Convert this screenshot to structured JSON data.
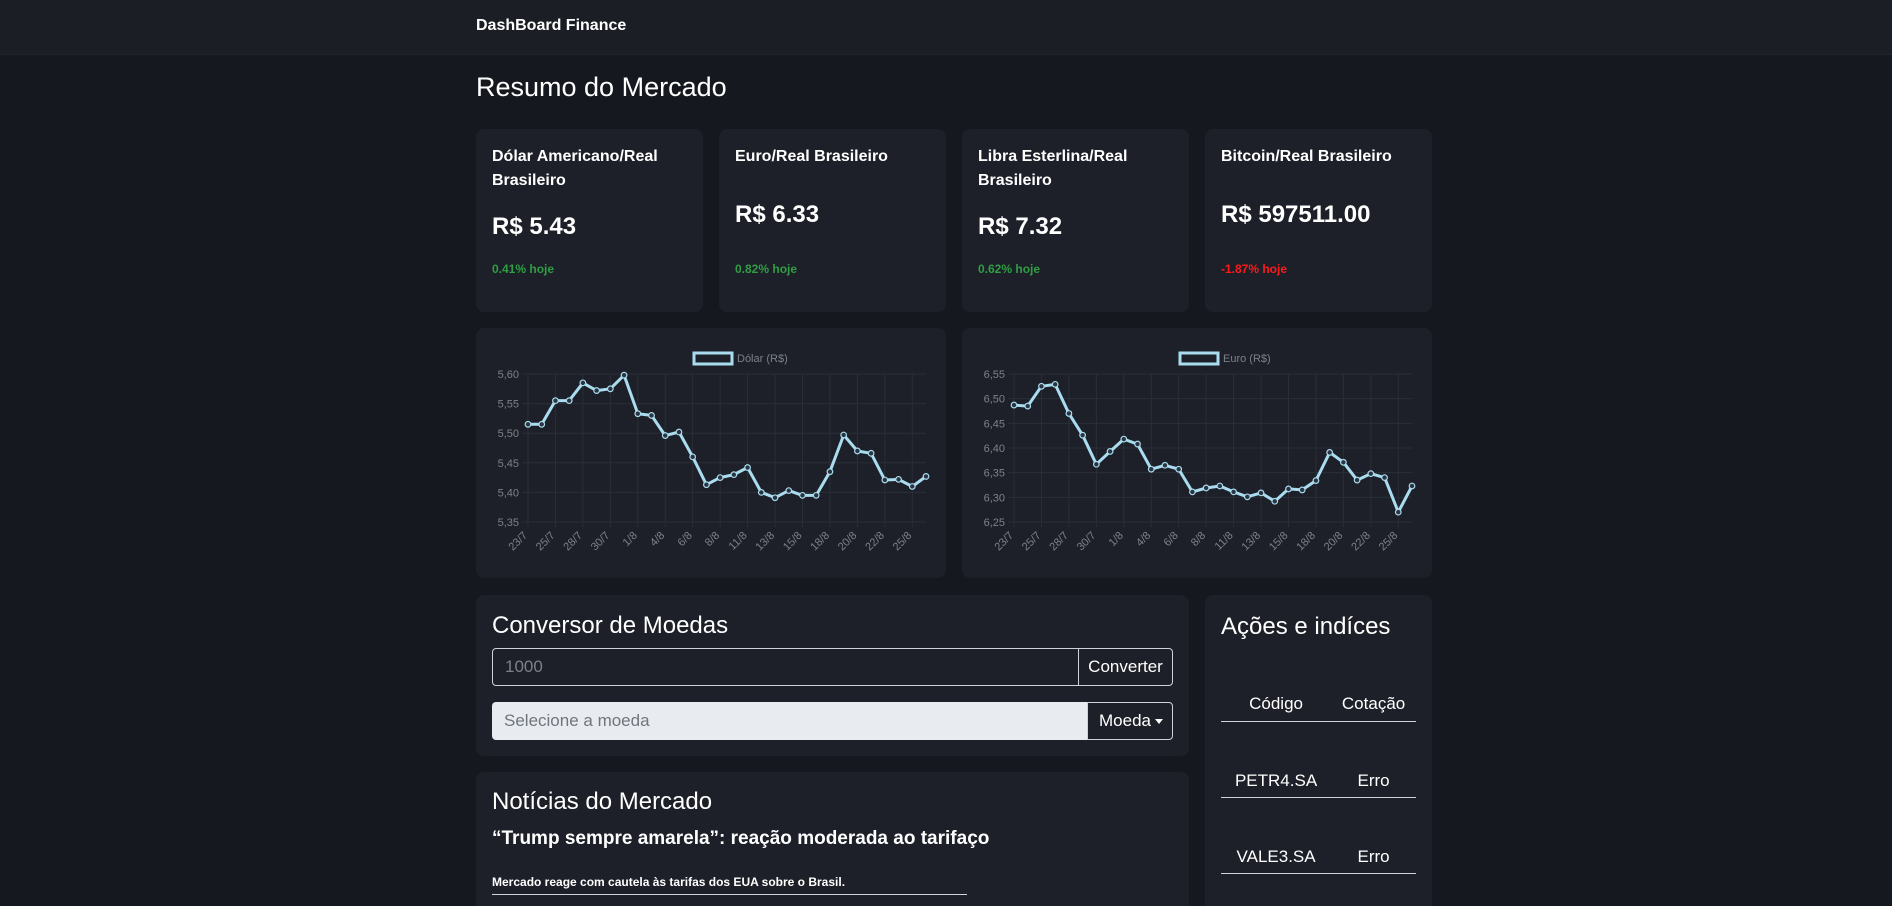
{
  "app": {
    "brand": "DashBoard Finance"
  },
  "page_title": "Resumo do Mercado",
  "quotes": [
    {
      "title": "Dólar Americano/Real Brasileiro",
      "value": "R$ 5.43",
      "change": "0.41% hoje",
      "positive": true
    },
    {
      "title": "Euro/Real Brasileiro",
      "value": "R$ 6.33",
      "change": "0.82% hoje",
      "positive": true
    },
    {
      "title": "Libra Esterlina/Real Brasileiro",
      "value": "R$ 7.32",
      "change": "0.62% hoje",
      "positive": true
    },
    {
      "title": "Bitcoin/Real Brasileiro",
      "value": "R$ 597511.00",
      "change": "-1.87% hoje",
      "positive": false
    }
  ],
  "colors": {
    "positive": "#2f9e44",
    "negative": "#ff1a1a",
    "line": "#a9dcef",
    "grid": "#2a2e37",
    "tick": "#7c818a"
  },
  "chart_data": [
    {
      "type": "line",
      "series": [
        {
          "name": "Dólar (R$)",
          "values": [
            5.515,
            5.515,
            5.555,
            5.555,
            5.585,
            5.572,
            5.575,
            5.598,
            5.533,
            5.53,
            5.496,
            5.502,
            5.46,
            5.413,
            5.425,
            5.43,
            5.442,
            5.4,
            5.391,
            5.403,
            5.395,
            5.395,
            5.435,
            5.497,
            5.47,
            5.466,
            5.421,
            5.422,
            5.41,
            5.427
          ]
        }
      ],
      "x_ticks": [
        "23/7",
        "25/7",
        "28/7",
        "30/7",
        "1/8",
        "4/8",
        "6/8",
        "8/8",
        "11/8",
        "13/8",
        "15/8",
        "18/8",
        "20/8",
        "22/8",
        "25/8"
      ],
      "y_ticks": [
        "5,60",
        "5,55",
        "5,50",
        "5,45",
        "5,40",
        "5,35"
      ],
      "ylim": [
        5.35,
        5.6
      ],
      "grid": true,
      "legend": "top-center"
    },
    {
      "type": "line",
      "series": [
        {
          "name": "Euro (R$)",
          "values": [
            6.487,
            6.485,
            6.525,
            6.529,
            6.47,
            6.426,
            6.367,
            6.393,
            6.418,
            6.408,
            6.357,
            6.365,
            6.357,
            6.311,
            6.319,
            6.323,
            6.311,
            6.301,
            6.309,
            6.292,
            6.317,
            6.315,
            6.334,
            6.391,
            6.371,
            6.335,
            6.348,
            6.34,
            6.27,
            6.323
          ]
        }
      ],
      "x_ticks": [
        "23/7",
        "25/7",
        "28/7",
        "30/7",
        "1/8",
        "4/8",
        "6/8",
        "8/8",
        "11/8",
        "13/8",
        "15/8",
        "18/8",
        "20/8",
        "22/8",
        "25/8"
      ],
      "y_ticks": [
        "6,55",
        "6,50",
        "6,45",
        "6,40",
        "6,35",
        "6,30",
        "6,25"
      ],
      "ylim": [
        6.25,
        6.55
      ],
      "grid": true,
      "legend": "top-center"
    }
  ],
  "converter": {
    "title": "Conversor de Moedas",
    "amount_placeholder": "1000",
    "convert_label": "Converter",
    "currency_placeholder": "Selecione a moeda",
    "currency_button": "Moeda"
  },
  "news": {
    "title": "Notícias do Mercado",
    "headline": "“Trump sempre amarela”: reação moderada ao tarifaço",
    "description": "Mercado reage com cautela às tarifas dos EUA sobre o Brasil."
  },
  "stocks": {
    "title": "Ações e indíces",
    "headers": [
      "Código",
      "Cotação"
    ],
    "rows": [
      {
        "code": "PETR4.SA",
        "price": "Erro"
      },
      {
        "code": "VALE3.SA",
        "price": "Erro"
      }
    ]
  }
}
